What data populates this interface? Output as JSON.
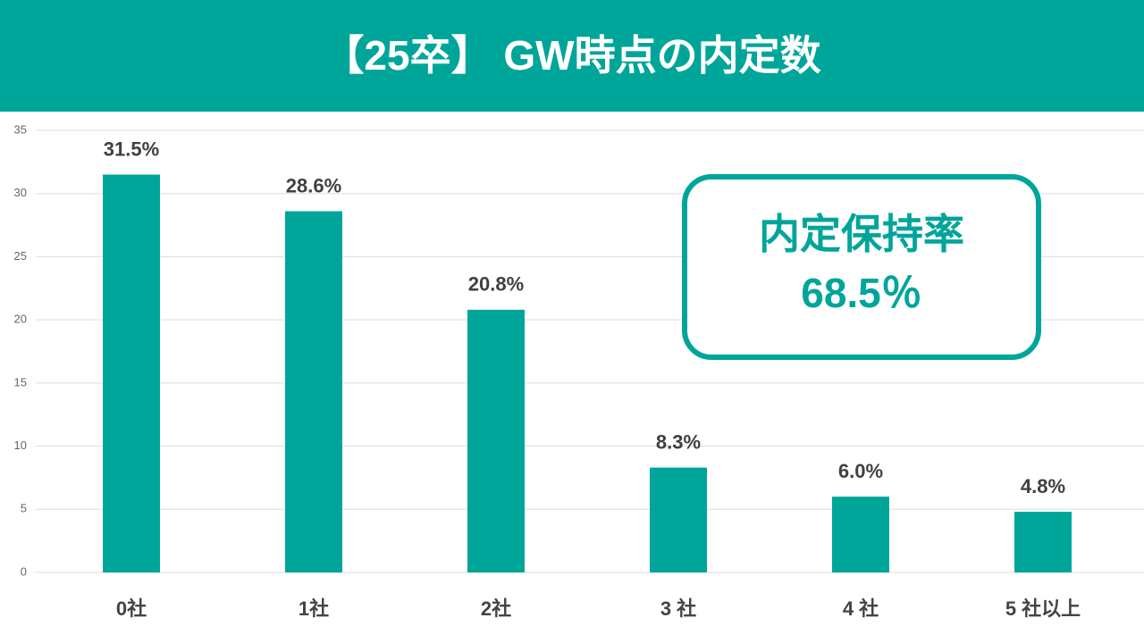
{
  "chart_data": {
    "type": "bar",
    "title": "【25卒】 GW時点の内定数",
    "categories": [
      "0社",
      "1社",
      "2社",
      "3 社",
      "4 社",
      "5 社以上"
    ],
    "values": [
      31.5,
      28.6,
      20.8,
      8.3,
      6.0,
      4.8
    ],
    "value_labels": [
      "31.5%",
      "28.6%",
      "20.8%",
      "8.3%",
      "6.0%",
      "4.8%"
    ],
    "color": "#00a59a",
    "ylim": [
      0,
      35
    ],
    "yticks": [
      0,
      5,
      10,
      15,
      20,
      25,
      30,
      35
    ],
    "grid": true,
    "annotations": [
      "内定保持率",
      "68.5％"
    ]
  }
}
